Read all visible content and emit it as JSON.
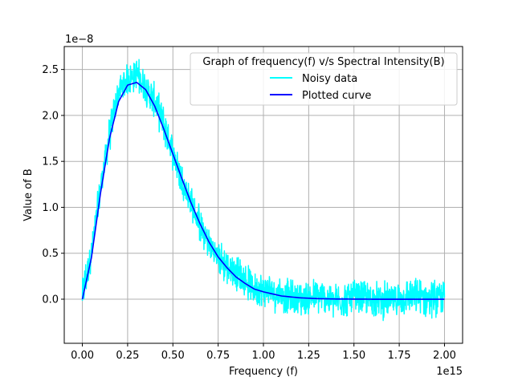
{
  "chart_data": {
    "type": "line",
    "title": "",
    "xlabel": "Frequency (f)",
    "ylabel": "Value of B",
    "x_offset_label": "1e15",
    "y_offset_label": "1e−8",
    "xlim": [
      -0.1,
      2.1
    ],
    "ylim": [
      -0.48,
      2.75
    ],
    "x_ticks": [
      0.0,
      0.25,
      0.5,
      0.75,
      1.0,
      1.25,
      1.5,
      1.75,
      2.0
    ],
    "x_tick_labels": [
      "0.00",
      "0.25",
      "0.50",
      "0.75",
      "1.00",
      "1.25",
      "1.50",
      "1.75",
      "2.00"
    ],
    "y_ticks": [
      0.0,
      0.5,
      1.0,
      1.5,
      2.0,
      2.5
    ],
    "y_tick_labels": [
      "0.0",
      "0.5",
      "1.0",
      "1.5",
      "2.0",
      "2.5"
    ],
    "grid": true,
    "legend": {
      "title": "Graph of frequency(f) v/s Spectral Intensity(B)",
      "position": "upper-right"
    },
    "series": [
      {
        "name": "Noisy data",
        "color": "#00ffff",
        "x": [
          0.0,
          0.05,
          0.1,
          0.15,
          0.2,
          0.25,
          0.3,
          0.35,
          0.4,
          0.45,
          0.5,
          0.55,
          0.6,
          0.65,
          0.7,
          0.75,
          0.8,
          0.85,
          0.9,
          0.95,
          1.0,
          1.1,
          1.2,
          1.3,
          1.4,
          1.5,
          1.6,
          1.7,
          1.8,
          1.9,
          2.0
        ],
        "y": [
          0.05,
          0.5,
          1.2,
          1.8,
          2.25,
          2.4,
          2.45,
          2.3,
          2.15,
          1.9,
          1.6,
          1.3,
          1.05,
          0.8,
          0.6,
          0.45,
          0.35,
          0.3,
          0.2,
          0.12,
          0.1,
          0.05,
          0.0,
          0.03,
          -0.02,
          0.02,
          0.0,
          -0.02,
          0.03,
          0.01,
          0.02
        ],
        "noise_amplitude": 0.15
      },
      {
        "name": "Plotted curve",
        "color": "#0000ff",
        "x": [
          0.0,
          0.05,
          0.1,
          0.15,
          0.2,
          0.25,
          0.3,
          0.35,
          0.4,
          0.45,
          0.5,
          0.55,
          0.6,
          0.65,
          0.7,
          0.75,
          0.8,
          0.85,
          0.9,
          0.95,
          1.0,
          1.1,
          1.2,
          1.3,
          1.4,
          1.5,
          1.6,
          1.7,
          1.8,
          1.9,
          2.0
        ],
        "y": [
          0.0,
          0.45,
          1.15,
          1.75,
          2.15,
          2.33,
          2.36,
          2.28,
          2.1,
          1.85,
          1.58,
          1.31,
          1.05,
          0.82,
          0.62,
          0.46,
          0.34,
          0.24,
          0.17,
          0.11,
          0.08,
          0.035,
          0.015,
          0.006,
          0.002,
          0.001,
          0.0,
          0.0,
          0.0,
          0.0,
          0.0
        ]
      }
    ]
  }
}
